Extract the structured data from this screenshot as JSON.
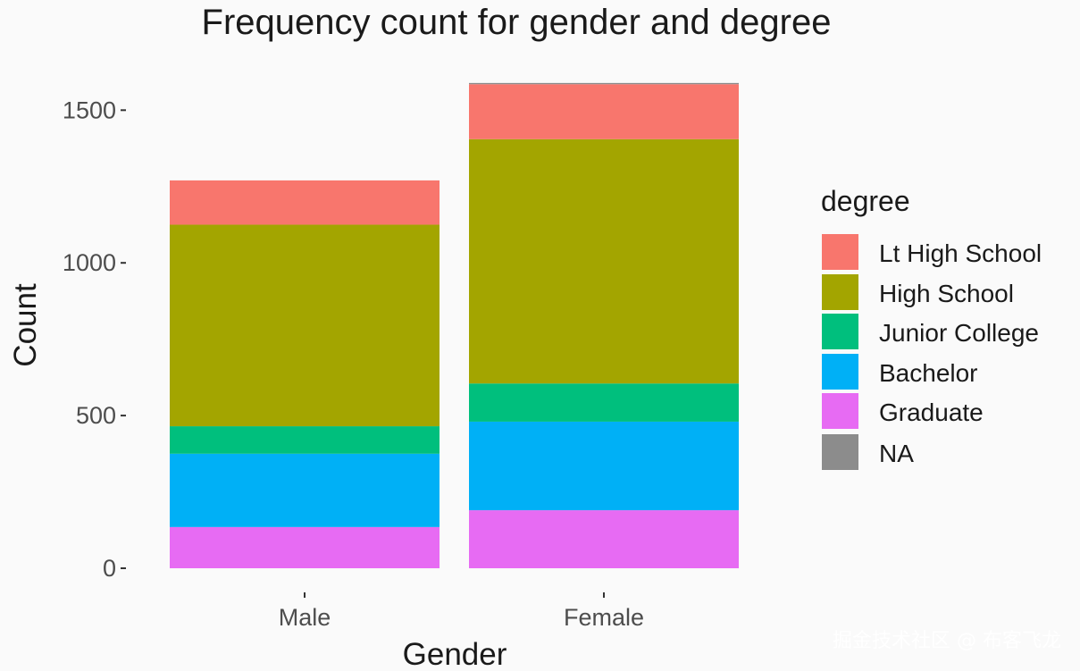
{
  "chart_data": {
    "type": "bar",
    "stacked": true,
    "title": "Frequency count for gender and degree",
    "xlabel": "Gender",
    "ylabel": "Count",
    "categories": [
      "Male",
      "Female"
    ],
    "ylim": [
      0,
      1600
    ],
    "yticks": [
      0,
      500,
      1000,
      1500
    ],
    "ytick_labels": [
      "0",
      "500",
      "1000",
      "1500"
    ],
    "legend_title": "degree",
    "series": [
      {
        "name": "Graduate",
        "color": "#E76BF3",
        "values": [
          135,
          190
        ]
      },
      {
        "name": "Bachelor",
        "color": "#00B0F6",
        "values": [
          240,
          290
        ]
      },
      {
        "name": "Junior College",
        "color": "#00BF7D",
        "values": [
          90,
          125
        ]
      },
      {
        "name": "High School",
        "color": "#A3A500",
        "values": [
          660,
          800
        ]
      },
      {
        "name": "Lt High School",
        "color": "#F8766D",
        "values": [
          145,
          180
        ]
      },
      {
        "name": "NA",
        "color": "#8C8C8C",
        "values": [
          0,
          4
        ]
      }
    ],
    "legend_order": [
      "Lt High School",
      "High School",
      "Junior College",
      "Bachelor",
      "Graduate",
      "NA"
    ]
  },
  "watermark": "掘金技术社区 @ 布客飞龙"
}
